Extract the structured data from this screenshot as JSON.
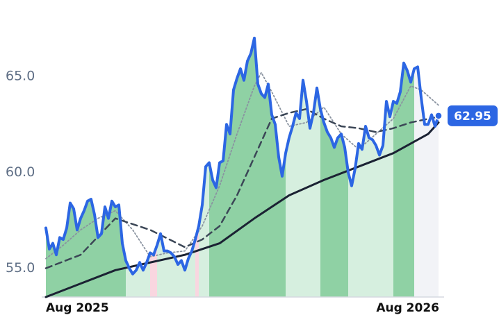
{
  "chart_data": {
    "type": "line",
    "x": [
      0,
      1,
      2,
      3,
      4,
      5,
      6,
      7,
      8,
      9,
      10,
      11,
      12,
      13,
      14,
      15,
      16,
      17,
      18,
      19,
      20,
      21,
      22,
      23,
      24,
      25,
      26,
      27,
      28,
      29,
      30,
      31,
      32,
      33,
      34,
      35,
      36,
      37,
      38,
      39,
      40,
      41,
      42,
      43,
      44,
      45,
      46,
      47,
      48,
      49,
      50,
      51,
      52,
      53,
      54,
      55,
      56,
      57,
      58,
      59,
      60,
      61,
      62,
      63,
      64,
      65,
      66,
      67,
      68,
      69,
      70,
      71,
      72,
      73,
      74,
      75,
      76,
      77,
      78,
      79,
      80,
      81,
      82,
      83,
      84,
      85,
      86,
      87,
      88,
      89,
      90,
      91,
      92,
      93,
      94,
      95,
      96,
      97,
      98,
      99,
      100,
      101,
      102,
      103,
      104,
      105,
      106,
      107,
      108,
      109,
      110,
      111,
      112,
      113
    ],
    "xlim": [
      0,
      113
    ],
    "xticks": [
      {
        "value": 0,
        "label": "Aug 2025"
      },
      {
        "value": 113,
        "label": "Aug 2026"
      }
    ],
    "ylim": [
      53.5,
      67.9
    ],
    "yticks": [
      {
        "value": 55,
        "label": "55.0"
      },
      {
        "value": 60,
        "label": "60.0"
      },
      {
        "value": 65,
        "label": "65.0"
      }
    ],
    "series": [
      {
        "color": "#2c66e3",
        "style": "solid",
        "width": 4,
        "area": true,
        "values": [
          57.1,
          56.0,
          56.3,
          55.7,
          56.6,
          56.5,
          57.1,
          58.4,
          58.1,
          57.0,
          57.6,
          58.0,
          58.5,
          58.6,
          57.8,
          56.6,
          56.8,
          58.2,
          57.6,
          58.5,
          58.2,
          58.3,
          56.3,
          55.4,
          55.0,
          54.7,
          54.9,
          55.3,
          54.9,
          55.3,
          55.8,
          55.7,
          56.2,
          56.8,
          55.9,
          55.9,
          55.8,
          55.6,
          55.2,
          55.4,
          54.9,
          55.5,
          55.9,
          56.5,
          57.2,
          58.3,
          60.3,
          60.5,
          59.6,
          59.2,
          60.5,
          60.6,
          62.5,
          62.0,
          64.3,
          64.9,
          65.4,
          64.8,
          65.8,
          66.2,
          67.0,
          64.6,
          64.1,
          63.9,
          64.6,
          63.0,
          62.5,
          60.8,
          59.8,
          61.0,
          61.8,
          62.4,
          63.1,
          62.8,
          64.8,
          63.7,
          62.3,
          63.1,
          64.4,
          63.3,
          62.6,
          62.1,
          61.8,
          61.3,
          61.8,
          62.0,
          61.3,
          60.0,
          59.3,
          60.2,
          61.5,
          61.2,
          62.4,
          61.8,
          61.7,
          61.4,
          60.9,
          61.4,
          63.7,
          62.9,
          63.7,
          63.6,
          64.2,
          65.7,
          65.3,
          64.7,
          65.4,
          65.5,
          63.9,
          62.5,
          62.5,
          63.0,
          62.4,
          62.95
        ],
        "last_label": "62.95"
      },
      {
        "color": "#3b4656",
        "style": "dashed",
        "width": 2.5,
        "x": [
          0,
          10,
          20,
          30,
          40,
          45,
          50,
          55,
          60,
          65,
          70,
          75,
          80,
          85,
          90,
          95,
          100,
          105,
          113
        ],
        "values": [
          55.0,
          55.7,
          57.6,
          57.0,
          56.1,
          56.5,
          57.2,
          58.8,
          60.8,
          62.8,
          63.1,
          63.3,
          62.8,
          62.4,
          62.3,
          62.1,
          62.3,
          62.6,
          62.9
        ]
      },
      {
        "color": "#8a93a0",
        "style": "dotted",
        "width": 1.8,
        "x": [
          0,
          5,
          10,
          15,
          20,
          25,
          30,
          35,
          40,
          45,
          50,
          55,
          60,
          62,
          65,
          70,
          75,
          80,
          85,
          90,
          95,
          100,
          105,
          108,
          113
        ],
        "values": [
          55.5,
          56.2,
          57.0,
          57.6,
          58.0,
          57.0,
          55.6,
          55.8,
          55.9,
          57.2,
          59.3,
          62.0,
          64.5,
          65.2,
          64.2,
          62.4,
          62.6,
          63.4,
          62.0,
          61.2,
          62.0,
          62.8,
          64.5,
          64.3,
          63.5
        ]
      },
      {
        "color": "#1b2233",
        "style": "solid",
        "width": 3,
        "x": [
          0,
          10,
          20,
          30,
          40,
          50,
          60,
          70,
          80,
          90,
          100,
          110,
          113
        ],
        "values": [
          53.5,
          54.2,
          54.9,
          55.3,
          55.7,
          56.3,
          57.6,
          58.8,
          59.6,
          60.3,
          61.0,
          62.0,
          62.6
        ]
      }
    ],
    "shading": [
      {
        "x0": 0,
        "x1": 23,
        "color": "#8fd1a4"
      },
      {
        "x0": 23,
        "x1": 30,
        "color": "#d6efdf"
      },
      {
        "x0": 30,
        "x1": 32,
        "color": "#f9d6e0"
      },
      {
        "x0": 32,
        "x1": 43,
        "color": "#d6efdf"
      },
      {
        "x0": 43,
        "x1": 44,
        "color": "#f9d6e0"
      },
      {
        "x0": 44,
        "x1": 47,
        "color": "#d6efdf"
      },
      {
        "x0": 47,
        "x1": 69,
        "color": "#8fd1a4"
      },
      {
        "x0": 69,
        "x1": 79,
        "color": "#d6efdf"
      },
      {
        "x0": 79,
        "x1": 87,
        "color": "#8fd1a4"
      },
      {
        "x0": 87,
        "x1": 100,
        "color": "#d6efdf"
      },
      {
        "x0": 100,
        "x1": 106,
        "color": "#8fd1a4"
      },
      {
        "x0": 106,
        "x1": 113,
        "color": "#f2f3f7"
      }
    ]
  }
}
